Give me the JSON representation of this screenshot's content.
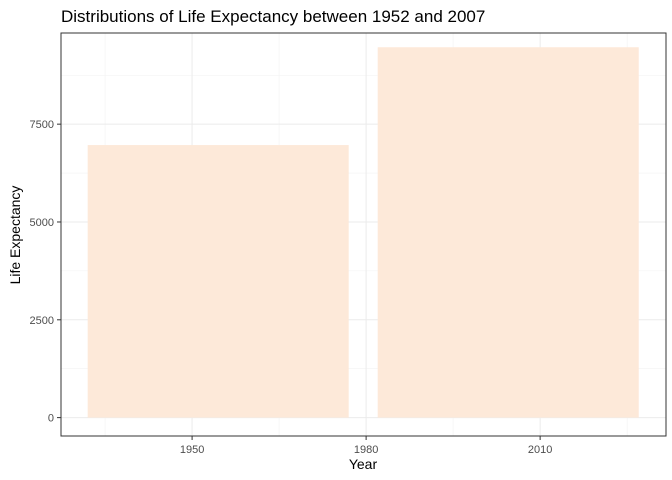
{
  "chart_data": {
    "type": "bar",
    "title": "Distributions of Life Expectancy between 1952 and 2007",
    "xlabel": "Year",
    "ylabel": "Life Expectancy",
    "bar_color": "#fde9d9",
    "grid": true,
    "xlim": [
      1927.4,
      2031.7
    ],
    "ylim": [
      -470,
      9830
    ],
    "x_ticks": [
      1950,
      1980,
      2010
    ],
    "y_ticks": [
      0,
      2500,
      5000,
      7500
    ],
    "bars": [
      {
        "x_start": 1932,
        "x_end": 1977,
        "value": 6966
      },
      {
        "x_start": 1982,
        "x_end": 2027,
        "value": 9466
      }
    ]
  }
}
